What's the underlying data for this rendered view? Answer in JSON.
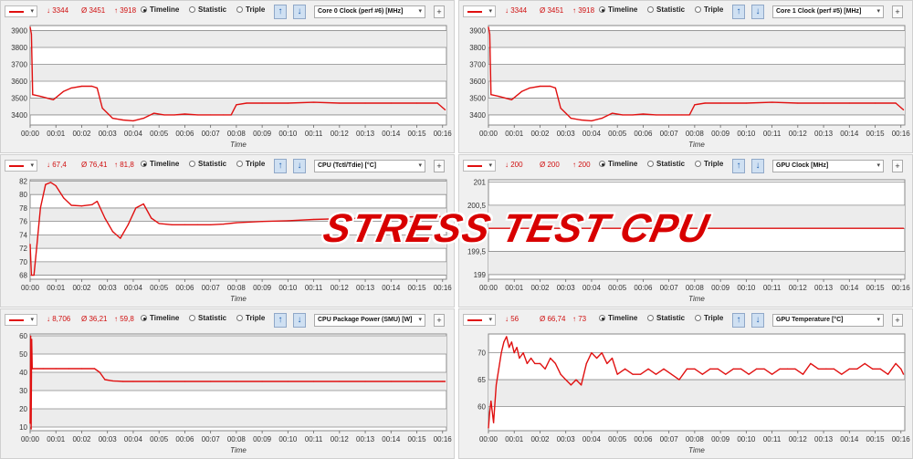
{
  "overlay_text": "STRESS TEST CPU",
  "colors": {
    "series": "#e01010",
    "grid": "#8a8a8a",
    "plot_bg": "#ffffff"
  },
  "icons": {
    "up": "arrow-up-icon",
    "down": "arrow-down-icon"
  },
  "panels": [
    {
      "min": "↓ 3344",
      "avg": "Ø 3451",
      "max": "↑ 3918",
      "radios": [
        "Timeline",
        "Statistic",
        "Triple"
      ],
      "selected_mode": "Timeline",
      "sensor": "Core 0 Clock (perf #6) [MHz]",
      "plus": "+",
      "chart_data": {
        "type": "line",
        "ylim": [
          3340,
          3930
        ],
        "yticks": [
          "3400",
          "3500",
          "3600",
          "3700",
          "3800",
          "3900"
        ],
        "ytick_values": [
          3400,
          3500,
          3600,
          3700,
          3800,
          3900
        ],
        "xticks": [
          "00:00",
          "00:01",
          "00:02",
          "00:03",
          "00:04",
          "00:05",
          "00:06",
          "00:07",
          "00:08",
          "00:09",
          "00:10",
          "00:11",
          "00:12",
          "00:13",
          "00:14",
          "00:15",
          "00:16"
        ],
        "xlabel": "Time",
        "x": [
          0,
          0.05,
          0.1,
          0.4,
          0.9,
          1.3,
          1.6,
          2.0,
          2.4,
          2.6,
          2.8,
          3.2,
          3.6,
          4.0,
          4.4,
          4.8,
          5.2,
          5.6,
          6.0,
          6.5,
          7.0,
          7.5,
          7.8,
          8.0,
          8.4,
          9.0,
          10.0,
          11.0,
          12.0,
          13.0,
          14.0,
          15.0,
          15.8,
          16.1
        ],
        "values": [
          3920,
          3880,
          3520,
          3510,
          3490,
          3540,
          3560,
          3570,
          3570,
          3560,
          3440,
          3380,
          3370,
          3365,
          3380,
          3410,
          3400,
          3400,
          3405,
          3400,
          3400,
          3400,
          3400,
          3460,
          3470,
          3470,
          3470,
          3475,
          3470,
          3470,
          3470,
          3470,
          3470,
          3430
        ]
      }
    },
    {
      "min": "↓ 3344",
      "avg": "Ø 3451",
      "max": "↑ 3918",
      "radios": [
        "Timeline",
        "Statistic",
        "Triple"
      ],
      "selected_mode": "Timeline",
      "sensor": "Core 1 Clock (perf #5) [MHz]",
      "plus": "+",
      "chart_data": {
        "type": "line",
        "ylim": [
          3340,
          3930
        ],
        "yticks": [
          "3400",
          "3500",
          "3600",
          "3700",
          "3800",
          "3900"
        ],
        "ytick_values": [
          3400,
          3500,
          3600,
          3700,
          3800,
          3900
        ],
        "xticks": [
          "00:00",
          "00:01",
          "00:02",
          "00:03",
          "00:04",
          "00:05",
          "00:06",
          "00:07",
          "00:08",
          "00:09",
          "00:10",
          "00:11",
          "00:12",
          "00:13",
          "00:14",
          "00:15",
          "00:16"
        ],
        "xlabel": "Time",
        "x": [
          0,
          0.05,
          0.1,
          0.4,
          0.9,
          1.3,
          1.6,
          2.0,
          2.4,
          2.6,
          2.8,
          3.2,
          3.6,
          4.0,
          4.4,
          4.8,
          5.2,
          5.6,
          6.0,
          6.5,
          7.0,
          7.5,
          7.8,
          8.0,
          8.4,
          9.0,
          10.0,
          11.0,
          12.0,
          13.0,
          14.0,
          15.0,
          15.8,
          16.1
        ],
        "values": [
          3920,
          3880,
          3520,
          3510,
          3490,
          3540,
          3560,
          3570,
          3570,
          3560,
          3440,
          3380,
          3370,
          3365,
          3380,
          3410,
          3400,
          3400,
          3405,
          3400,
          3400,
          3400,
          3400,
          3460,
          3470,
          3470,
          3470,
          3475,
          3470,
          3470,
          3470,
          3470,
          3470,
          3430
        ]
      }
    },
    {
      "min": "↓ 67,4",
      "avg": "Ø 76,41",
      "max": "↑ 81,8",
      "radios": [
        "Timeline",
        "Statistic",
        "Triple"
      ],
      "selected_mode": "Timeline",
      "sensor": "CPU (Tctl/Tdie) [°C]",
      "plus": "+",
      "chart_data": {
        "type": "line",
        "ylim": [
          67.4,
          82.2
        ],
        "yticks": [
          "68",
          "70",
          "72",
          "74",
          "76",
          "78",
          "80",
          "82"
        ],
        "ytick_values": [
          68,
          70,
          72,
          74,
          76,
          78,
          80,
          82
        ],
        "xticks": [
          "00:00",
          "00:01",
          "00:02",
          "00:03",
          "00:04",
          "00:05",
          "00:06",
          "00:07",
          "00:08",
          "00:09",
          "00:10",
          "00:11",
          "00:12",
          "00:13",
          "00:14",
          "00:15",
          "00:16"
        ],
        "xlabel": "Time",
        "x": [
          0,
          0.05,
          0.15,
          0.25,
          0.4,
          0.6,
          0.8,
          1.0,
          1.3,
          1.6,
          2.0,
          2.4,
          2.6,
          2.9,
          3.2,
          3.5,
          3.8,
          4.1,
          4.4,
          4.7,
          5.0,
          5.5,
          6.0,
          6.5,
          7.0,
          7.5,
          8.0,
          9.0,
          10.0,
          11.0,
          12.0,
          13.0,
          14.0,
          15.0,
          16.0,
          16.1
        ],
        "values": [
          72.6,
          68.0,
          68.0,
          72.0,
          78.0,
          81.5,
          81.8,
          81.3,
          79.5,
          78.4,
          78.3,
          78.5,
          79.0,
          76.5,
          74.5,
          73.5,
          75.5,
          78.0,
          78.6,
          76.5,
          75.7,
          75.5,
          75.5,
          75.5,
          75.5,
          75.6,
          75.8,
          76.0,
          76.1,
          76.3,
          76.4,
          76.5,
          76.6,
          76.7,
          76.7,
          76.8
        ]
      }
    },
    {
      "min": "↓ 200",
      "avg": "Ø 200",
      "max": "↑ 200",
      "radios": [
        "Timeline",
        "Statistic",
        "Triple"
      ],
      "selected_mode": "Timeline",
      "sensor": "GPU Clock [MHz]",
      "plus": "+",
      "chart_data": {
        "type": "line",
        "ylim": [
          198.9,
          201.05
        ],
        "yticks": [
          "199",
          "199,5",
          "200",
          "200,5",
          "201"
        ],
        "ytick_values": [
          199,
          199.5,
          200,
          200.5,
          201
        ],
        "xticks": [
          "00:00",
          "00:01",
          "00:02",
          "00:03",
          "00:04",
          "00:05",
          "00:06",
          "00:07",
          "00:08",
          "00:09",
          "00:10",
          "00:11",
          "00:12",
          "00:13",
          "00:14",
          "00:15",
          "00:16"
        ],
        "xlabel": "Time",
        "x": [
          0,
          16.1
        ],
        "values": [
          200,
          200
        ]
      }
    },
    {
      "min": "↓ 8,706",
      "avg": "Ø 36,21",
      "max": "↑ 59,8",
      "radios": [
        "Timeline",
        "Statistic",
        "Triple"
      ],
      "selected_mode": "Timeline",
      "sensor": "CPU Package Power (SMU) [W]",
      "plus": "+",
      "chart_data": {
        "type": "line",
        "ylim": [
          8,
          61
        ],
        "yticks": [
          "10",
          "20",
          "30",
          "40",
          "50",
          "60"
        ],
        "ytick_values": [
          10,
          20,
          30,
          40,
          50,
          60
        ],
        "xticks": [
          "00:00",
          "00:01",
          "00:02",
          "00:03",
          "00:04",
          "00:05",
          "00:06",
          "00:07",
          "00:08",
          "00:09",
          "00:10",
          "00:11",
          "00:12",
          "00:13",
          "00:14",
          "00:15",
          "00:16"
        ],
        "xlabel": "Time",
        "x": [
          0,
          0.02,
          0.04,
          0.06,
          0.08,
          0.1,
          0.5,
          1.0,
          1.5,
          2.0,
          2.5,
          2.7,
          2.9,
          3.2,
          3.6,
          4.0,
          5.0,
          6.0,
          7.0,
          8.0,
          9.0,
          10.0,
          11.0,
          12.0,
          13.0,
          14.0,
          15.0,
          16.0,
          16.1
        ],
        "values": [
          12,
          59.8,
          9,
          58,
          42,
          42,
          42,
          42,
          42,
          42,
          42,
          40,
          36,
          35.3,
          35,
          35,
          35,
          35,
          35,
          35,
          35,
          35,
          35,
          35,
          35,
          35,
          35,
          35,
          35
        ]
      }
    },
    {
      "min": "↓ 56",
      "avg": "Ø 66,74",
      "max": "↑ 73",
      "radios": [
        "Timeline",
        "Statistic",
        "Triple"
      ],
      "selected_mode": "Timeline",
      "sensor": "GPU Temperature [°C]",
      "plus": "+",
      "chart_data": {
        "type": "line",
        "ylim": [
          55.5,
          73.5
        ],
        "yticks": [
          "60",
          "65",
          "70"
        ],
        "ytick_values": [
          60,
          65,
          70
        ],
        "xticks": [
          "00:00",
          "00:01",
          "00:02",
          "00:03",
          "00:04",
          "00:05",
          "00:06",
          "00:07",
          "00:08",
          "00:09",
          "00:10",
          "00:11",
          "00:12",
          "00:13",
          "00:14",
          "00:15",
          "00:16"
        ],
        "xlabel": "Time",
        "x": [
          0,
          0.05,
          0.1,
          0.2,
          0.3,
          0.4,
          0.5,
          0.6,
          0.7,
          0.8,
          0.9,
          1.0,
          1.1,
          1.2,
          1.35,
          1.5,
          1.65,
          1.8,
          2.0,
          2.2,
          2.4,
          2.6,
          2.8,
          3.0,
          3.2,
          3.4,
          3.6,
          3.8,
          4.0,
          4.2,
          4.4,
          4.6,
          4.8,
          5.0,
          5.3,
          5.6,
          5.9,
          6.2,
          6.5,
          6.8,
          7.1,
          7.4,
          7.7,
          8.0,
          8.3,
          8.6,
          8.9,
          9.2,
          9.5,
          9.8,
          10.1,
          10.4,
          10.7,
          11.0,
          11.3,
          11.6,
          11.9,
          12.2,
          12.5,
          12.8,
          13.1,
          13.4,
          13.7,
          14.0,
          14.3,
          14.6,
          14.9,
          15.2,
          15.5,
          15.8,
          16.0,
          16.1
        ],
        "values": [
          56,
          59,
          61,
          57,
          64,
          67,
          70,
          72,
          73,
          71,
          72,
          70,
          71,
          69,
          70,
          68,
          69,
          68,
          68,
          67,
          69,
          68,
          66,
          65,
          64,
          65,
          64,
          68,
          70,
          69,
          70,
          68,
          69,
          66,
          67,
          66,
          66,
          67,
          66,
          67,
          66,
          65,
          67,
          67,
          66,
          67,
          67,
          66,
          67,
          67,
          66,
          67,
          67,
          66,
          67,
          67,
          67,
          66,
          68,
          67,
          67,
          67,
          66,
          67,
          67,
          68,
          67,
          67,
          66,
          68,
          67,
          66
        ]
      }
    }
  ]
}
